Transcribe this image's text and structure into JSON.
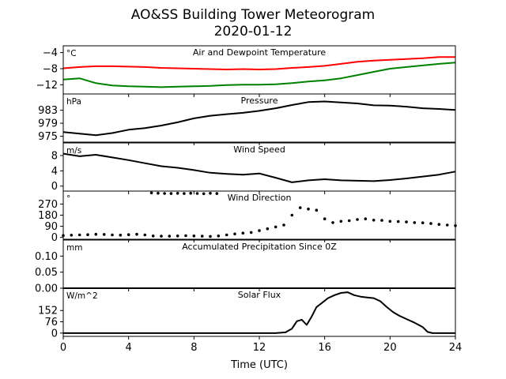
{
  "figure": {
    "title": "AO&SS Building Tower Meteorogram",
    "subtitle": "2020-01-12",
    "xlabel": "Time (UTC)"
  },
  "chart_data": [
    {
      "type": "line",
      "title": "Air and Dewpoint Temperature",
      "unit": "°C",
      "xlim": [
        0,
        24
      ],
      "ylim": [
        -14.3,
        -2.3
      ],
      "yticks": [
        -12,
        -8,
        -4
      ],
      "ytick_labels": [
        "−12",
        "−8",
        "−4"
      ],
      "series": [
        {
          "color": "#ff0000",
          "x": [
            0,
            1,
            2,
            3,
            4,
            5,
            6,
            7,
            8,
            9,
            10,
            11,
            12,
            13,
            14,
            15,
            16,
            17,
            18,
            19,
            20,
            21,
            22,
            23,
            24
          ],
          "values": [
            -7.9,
            -7.6,
            -7.4,
            -7.4,
            -7.5,
            -7.6,
            -7.8,
            -7.9,
            -8.0,
            -8.1,
            -8.2,
            -8.1,
            -8.2,
            -8.1,
            -7.8,
            -7.6,
            -7.3,
            -6.8,
            -6.3,
            -6.0,
            -5.8,
            -5.6,
            -5.4,
            -5.1,
            -5.1
          ]
        },
        {
          "color": "#008000",
          "x": [
            0,
            1,
            2,
            3,
            4,
            5,
            6,
            7,
            8,
            9,
            10,
            11,
            12,
            13,
            14,
            15,
            16,
            17,
            18,
            19,
            20,
            21,
            22,
            23,
            24
          ],
          "values": [
            -10.7,
            -10.4,
            -11.6,
            -12.2,
            -12.4,
            -12.5,
            -12.6,
            -12.5,
            -12.4,
            -12.3,
            -12.1,
            -12.0,
            -12.0,
            -11.9,
            -11.6,
            -11.2,
            -10.9,
            -10.4,
            -9.6,
            -8.8,
            -8.0,
            -7.6,
            -7.2,
            -6.8,
            -6.5
          ]
        }
      ]
    },
    {
      "type": "line",
      "title": "Pressure",
      "unit": "hPa",
      "xlim": [
        0,
        24
      ],
      "ylim": [
        973.2,
        988.0
      ],
      "yticks": [
        975,
        979,
        983
      ],
      "ytick_labels": [
        "975",
        "979",
        "983"
      ],
      "series": [
        {
          "color": "#000000",
          "x": [
            0,
            1,
            2,
            3,
            4,
            5,
            6,
            7,
            8,
            9,
            10,
            11,
            12,
            13,
            14,
            15,
            16,
            17,
            18,
            19,
            20,
            21,
            22,
            23,
            24
          ],
          "values": [
            976.3,
            975.8,
            975.3,
            976.0,
            977.0,
            977.5,
            978.3,
            979.3,
            980.5,
            981.3,
            981.8,
            982.2,
            982.8,
            983.6,
            984.6,
            985.5,
            985.7,
            985.4,
            985.1,
            984.5,
            984.4,
            984.1,
            983.6,
            983.4,
            983.1
          ]
        }
      ]
    },
    {
      "type": "line",
      "title": "Wind Speed",
      "unit": "m/s",
      "xlim": [
        0,
        24
      ],
      "ylim": [
        -1.3,
        11.3
      ],
      "yticks": [
        0,
        4,
        8
      ],
      "ytick_labels": [
        "0",
        "4",
        "8"
      ],
      "series": [
        {
          "color": "#000000",
          "x": [
            0,
            1,
            2,
            3,
            4,
            5,
            6,
            7,
            8,
            9,
            10,
            11,
            12,
            13,
            14,
            15,
            16,
            17,
            18,
            19,
            20,
            21,
            22,
            23,
            24
          ],
          "values": [
            8.5,
            7.8,
            8.2,
            7.5,
            6.8,
            6.0,
            5.2,
            4.8,
            4.2,
            3.5,
            3.2,
            3.0,
            3.3,
            2.2,
            1.0,
            1.5,
            1.8,
            1.5,
            1.4,
            1.3,
            1.6,
            2.0,
            2.5,
            3.0,
            3.8
          ]
        }
      ]
    },
    {
      "type": "scatter",
      "title": "Wind Direction",
      "unit": "°",
      "xlim": [
        0,
        24
      ],
      "ylim": [
        -15,
        375
      ],
      "yticks": [
        0,
        90,
        180,
        270
      ],
      "ytick_labels": [
        "0",
        "90",
        "180",
        "270"
      ],
      "series": [
        {
          "color": "#000000",
          "x": [
            0,
            0.5,
            1,
            1.5,
            2,
            2.5,
            3,
            3.5,
            4,
            4.5,
            5,
            5.5,
            6,
            6.5,
            7,
            7.5,
            8,
            8.5,
            9,
            9.5,
            10,
            10.5,
            11,
            11.5,
            12,
            12.5,
            13,
            13.5,
            14,
            14.5,
            15,
            15.5,
            16,
            16.5,
            17,
            17.5,
            18,
            18.5,
            19,
            19.5,
            20,
            20.5,
            21,
            21.5,
            22,
            22.5,
            23,
            23.5,
            24
          ],
          "values": [
            15,
            18,
            20,
            22,
            25,
            24,
            20,
            18,
            22,
            25,
            20,
            12,
            10,
            10,
            12,
            14,
            12,
            10,
            8,
            12,
            20,
            28,
            35,
            40,
            55,
            70,
            85,
            100,
            180,
            240,
            230,
            220,
            150,
            120,
            130,
            135,
            145,
            150,
            140,
            138,
            130,
            128,
            125,
            120,
            118,
            112,
            105,
            100,
            95
          ]
        },
        {
          "color": "#000000",
          "x": [
            5.4,
            5.8,
            6.2,
            6.6,
            7.0,
            7.4,
            7.8,
            8.2,
            8.6,
            9.0,
            9.4
          ],
          "values": [
            360,
            358,
            356,
            355,
            357,
            355,
            358,
            356,
            354,
            357,
            355
          ]
        }
      ]
    },
    {
      "type": "line",
      "title": "Accumulated Precipitation Since 0Z",
      "unit": "mm",
      "xlim": [
        0,
        24
      ],
      "ylim": [
        0.0,
        0.15
      ],
      "yticks": [
        0.0,
        0.05,
        0.1
      ],
      "ytick_labels": [
        "0.00",
        "0.05",
        "0.10"
      ],
      "series": [
        {
          "color": "#000000",
          "x": [
            0,
            24
          ],
          "values": [
            0.0,
            0.0
          ]
        }
      ]
    },
    {
      "type": "line",
      "title": "Solar Flux",
      "unit": "W/m^2",
      "xlim": [
        0,
        24
      ],
      "ylim": [
        -22,
        302
      ],
      "yticks": [
        0,
        76,
        152
      ],
      "ytick_labels": [
        "0",
        "76",
        "152"
      ],
      "series": [
        {
          "color": "#000000",
          "x": [
            0,
            13.0,
            13.6,
            14.0,
            14.3,
            14.6,
            14.9,
            15.2,
            15.5,
            15.8,
            16.2,
            16.6,
            17.0,
            17.4,
            17.8,
            18.2,
            18.6,
            19.0,
            19.4,
            19.8,
            20.2,
            20.6,
            21.0,
            21.5,
            22.0,
            22.3,
            22.6,
            23.0,
            24
          ],
          "values": [
            0,
            0,
            5,
            30,
            80,
            90,
            55,
            110,
            175,
            200,
            235,
            255,
            270,
            275,
            255,
            245,
            240,
            235,
            215,
            175,
            140,
            115,
            95,
            70,
            40,
            8,
            0,
            0,
            0
          ]
        }
      ]
    }
  ]
}
